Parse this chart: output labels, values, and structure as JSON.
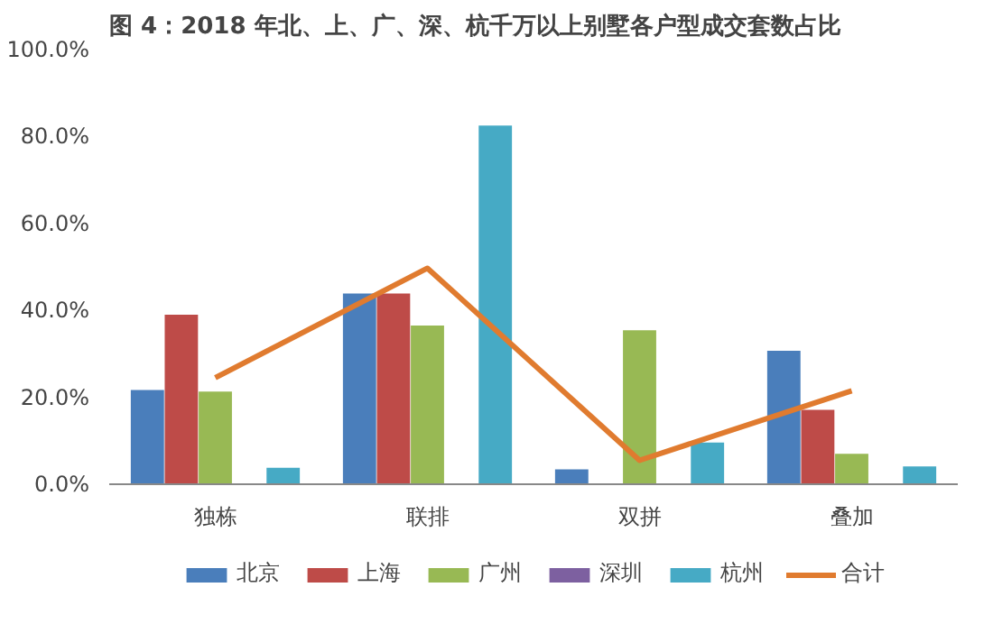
{
  "chart_data": {
    "type": "bar",
    "title": "图 4：2018 年北、上、广、深、杭千万以上别墅各户型成交套数占比",
    "categories": [
      "独栋",
      "联排",
      "双拼",
      "叠加"
    ],
    "series": [
      {
        "name": "北京",
        "color": "#4a7ebb",
        "values": [
          21.7,
          43.9,
          3.4,
          30.7
        ]
      },
      {
        "name": "上海",
        "color": "#be4b48",
        "values": [
          39.0,
          43.9,
          0,
          17.1
        ]
      },
      {
        "name": "广州",
        "color": "#98b954",
        "values": [
          21.3,
          36.5,
          35.4,
          7.0
        ]
      },
      {
        "name": "深圳",
        "color": "#7d60a0",
        "values": [
          0,
          0,
          0,
          0
        ]
      },
      {
        "name": "杭州",
        "color": "#46aac5",
        "values": [
          3.8,
          82.5,
          9.6,
          4.1
        ]
      },
      {
        "name": "合计",
        "color": "#e07b2f",
        "type": "line",
        "values": [
          24.5,
          49.7,
          5.5,
          21.5
        ]
      }
    ],
    "ylim": [
      0,
      100
    ],
    "yticks": [
      {
        "value": 0,
        "label": "0.0%"
      },
      {
        "value": 20,
        "label": "20.0%"
      },
      {
        "value": 40,
        "label": "40.0%"
      },
      {
        "value": 60,
        "label": "60.0%"
      },
      {
        "value": 80,
        "label": "80.0%"
      },
      {
        "value": 100,
        "label": "100.0%"
      }
    ],
    "grid": false,
    "legend": "bottom"
  }
}
